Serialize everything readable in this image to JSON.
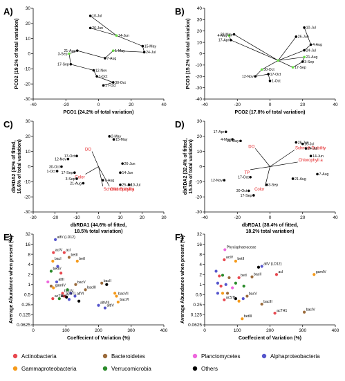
{
  "colors": {
    "black": "#000000",
    "green": "#66dd44",
    "red": "#e31a1c",
    "Actinobacteria": "#e8484f",
    "Bacteroidetes": "#9a6a3a",
    "Planctomycetes": "#ee66dd",
    "Alphaproteobacteria": "#5555cc",
    "Gammaproteobacteria": "#f59a1a",
    "Verrucomicrobia": "#2a8a2a",
    "Others": "#000000"
  },
  "legend": [
    {
      "name": "Actinobacteria",
      "color": "#e8484f"
    },
    {
      "name": "Bacteroidetes",
      "color": "#9a6a3a"
    },
    {
      "name": "Planctomycetes",
      "color": "#ee66dd"
    },
    {
      "name": "Alphaproteobacteria",
      "color": "#5555cc"
    },
    {
      "name": "Gammaproteobacteria",
      "color": "#f59a1a"
    },
    {
      "name": "Verrucomicrobia",
      "color": "#2a8a2a"
    },
    {
      "name": "Others",
      "color": "#000000"
    }
  ],
  "chart_data": [
    {
      "panel": "A)",
      "type": "scatter",
      "xlabel": "PCO1 (24.2% of total variation)",
      "ylabel": "PCO2 (19.2% of total variation)",
      "xlim": [
        -40,
        40
      ],
      "ylim": [
        -30,
        30
      ],
      "xticks": [
        -40,
        -20,
        0,
        20,
        40
      ],
      "yticks": [
        -30,
        -20,
        -10,
        0,
        10,
        20,
        30
      ],
      "points": [
        {
          "label": "10-Jul",
          "x": -5,
          "y": 25,
          "color": "black"
        },
        {
          "label": "26-Jun",
          "x": -5,
          "y": 17,
          "color": "black"
        },
        {
          "label": "14-Jun",
          "x": 11,
          "y": 12,
          "color": "green"
        },
        {
          "label": "15-May",
          "x": 27,
          "y": 5,
          "color": "black"
        },
        {
          "label": "24-Jul",
          "x": 28,
          "y": 1,
          "color": "black"
        },
        {
          "label": "1-May",
          "x": 9,
          "y": 2,
          "color": "green"
        },
        {
          "label": "21-Aug",
          "x": -13,
          "y": 2,
          "color": "black"
        },
        {
          "label": "3-Sep",
          "x": -18,
          "y": 0,
          "color": "green"
        },
        {
          "label": "7-Aug",
          "x": 4,
          "y": -3,
          "color": "black"
        },
        {
          "label": "17-Sep",
          "x": -17,
          "y": -7,
          "color": "black"
        },
        {
          "label": "12-Nov",
          "x": -3,
          "y": -11,
          "color": "black"
        },
        {
          "label": "1-Oct",
          "x": -1,
          "y": -15,
          "color": "black"
        },
        {
          "label": "30-Oct",
          "x": 9,
          "y": -19,
          "color": "black"
        },
        {
          "label": "17-Oct",
          "x": 3,
          "y": -21,
          "color": "black"
        }
      ],
      "path": [
        "10-Jul",
        "14-Jun",
        "26-Jun"
      ],
      "path2": [
        "14-Jun",
        "15-May",
        "24-Jul",
        "1-May",
        "7-Aug",
        "21-Aug",
        "3-Sep",
        "17-Sep",
        "12-Nov",
        "1-Oct",
        "30-Oct",
        "17-Oct"
      ]
    },
    {
      "panel": "B)",
      "type": "scatter",
      "xlabel": "PCO2 (17.8% of total variation)",
      "ylabel": "PCO3 (15.2% of total variation)",
      "xlim": [
        -40,
        40
      ],
      "ylim": [
        -40,
        40
      ],
      "xticks": [
        -40,
        -20,
        0,
        20,
        40
      ],
      "yticks": [
        -40,
        -30,
        -20,
        -10,
        0,
        10,
        20,
        30,
        40
      ],
      "points": [
        {
          "label": "10-Jul",
          "x": 21,
          "y": 23,
          "color": "black"
        },
        {
          "label": "4-May",
          "x": -25,
          "y": 16,
          "color": "green"
        },
        {
          "label": "28-May",
          "x": -22,
          "y": 17,
          "color": "black"
        },
        {
          "label": "17-Apr",
          "x": -24,
          "y": 12,
          "color": "black"
        },
        {
          "label": "26-Jun",
          "x": 16,
          "y": 15,
          "color": "black"
        },
        {
          "label": "4-Aug",
          "x": 25,
          "y": 8,
          "color": "black"
        },
        {
          "label": "24-Jul",
          "x": 21,
          "y": 3,
          "color": "black"
        },
        {
          "label": "21-Aug",
          "x": 21,
          "y": -3,
          "color": "green"
        },
        {
          "label": "3-Sep",
          "x": 20,
          "y": -7,
          "color": "black"
        },
        {
          "label": "17-Sep",
          "x": 14,
          "y": -12,
          "color": "green"
        },
        {
          "label": "30-Oct",
          "x": -5,
          "y": -14,
          "color": "green"
        },
        {
          "label": "17-Oct",
          "x": -1,
          "y": -18,
          "color": "black"
        },
        {
          "label": "12-Nov",
          "x": -9,
          "y": -20,
          "color": "black"
        },
        {
          "label": "1-Oct",
          "x": 0,
          "y": -24,
          "color": "black"
        },
        {
          "label": "center",
          "x": 5,
          "y": -6,
          "color": "green"
        }
      ],
      "path": [
        "10-Jul",
        "4-Aug",
        "24-Jul",
        "center",
        "28-May",
        "4-May",
        "17-Apr",
        "center",
        "26-Jun",
        "center",
        "21-Aug",
        "3-Sep",
        "17-Sep",
        "center",
        "30-Oct",
        "12-Nov",
        "17-Oct",
        "1-Oct"
      ]
    },
    {
      "panel": "C)",
      "type": "scatter",
      "xlabel": "dbRDA1 (44.6% of fitted, 18.5% total variation)",
      "ylabel": "dbRDA2 (40% of fitted, 16.6% of total variation)",
      "xlim": [
        -30,
        30
      ],
      "ylim": [
        -30,
        30
      ],
      "xticks": [
        -30,
        -20,
        -10,
        0,
        10,
        20,
        30
      ],
      "yticks": [
        -30,
        -20,
        -10,
        0,
        10,
        20,
        30
      ],
      "points": [
        {
          "label": "2-May",
          "x": 5,
          "y": 20,
          "color": "black"
        },
        {
          "label": "15-May",
          "x": 7,
          "y": 18,
          "color": "black"
        },
        {
          "label": "17-Oct",
          "x": -10,
          "y": 7,
          "color": "black"
        },
        {
          "label": "12-Nov",
          "x": -14,
          "y": 5,
          "color": "black"
        },
        {
          "label": "30-Oct",
          "x": -17,
          "y": 0,
          "color": "black"
        },
        {
          "label": "1-Oct",
          "x": -19,
          "y": -3,
          "color": "black"
        },
        {
          "label": "17-Sep",
          "x": -11,
          "y": -4,
          "color": "black"
        },
        {
          "label": "26-Jun",
          "x": 11,
          "y": 2,
          "color": "black"
        },
        {
          "label": "14-Jun",
          "x": 10,
          "y": -4,
          "color": "black"
        },
        {
          "label": "3-Sep",
          "x": -10,
          "y": -8,
          "color": "black"
        },
        {
          "label": "7-Aug",
          "x": 2,
          "y": -9,
          "color": "black"
        },
        {
          "label": "21-Aug",
          "x": -7,
          "y": -11,
          "color": "black"
        },
        {
          "label": "25-Jul",
          "x": 10,
          "y": -12,
          "color": "black"
        },
        {
          "label": "10-Jul",
          "x": 14,
          "y": -12,
          "color": "black"
        }
      ],
      "vectors": [
        {
          "label": "DO",
          "x": -3,
          "y": 10
        },
        {
          "label": "Color",
          "x": -6,
          "y": -5
        },
        {
          "label": "Schmidt Stability",
          "x": 2,
          "y": -13
        },
        {
          "label": "Chlorophyll a",
          "x": 5,
          "y": -13
        }
      ]
    },
    {
      "panel": "D)",
      "type": "scatter",
      "xlabel": "dbRDA1 (38.4% of fitted, 18.2% total variation)",
      "ylabel": "dbRDA2 (32.4% of fitted, 15.3% of total variation)",
      "xlim": [
        -40,
        40
      ],
      "ylim": [
        -30,
        30
      ],
      "xticks": [
        -40,
        -20,
        0,
        20,
        40
      ],
      "yticks": [
        -30,
        -20,
        -10,
        0,
        10,
        20,
        30
      ],
      "points": [
        {
          "label": "17-Apr",
          "x": -27,
          "y": 23,
          "color": "black"
        },
        {
          "label": "4-May",
          "x": -23,
          "y": 18,
          "color": "black"
        },
        {
          "label": "28-May",
          "x": -18,
          "y": 17,
          "color": "black"
        },
        {
          "label": "26-Jun",
          "x": 16,
          "y": 16,
          "color": "black"
        },
        {
          "label": "10-Jul",
          "x": 20,
          "y": 15,
          "color": "black"
        },
        {
          "label": "24-Jul",
          "x": 22,
          "y": 12,
          "color": "black"
        },
        {
          "label": "14-Jun",
          "x": 25,
          "y": 7,
          "color": "black"
        },
        {
          "label": "7-Aug",
          "x": 29,
          "y": -5,
          "color": "black"
        },
        {
          "label": "21-Aug",
          "x": 14,
          "y": -8,
          "color": "black"
        },
        {
          "label": "17-Oct",
          "x": -12,
          "y": -7,
          "color": "black"
        },
        {
          "label": "12-Nov",
          "x": -28,
          "y": -9,
          "color": "black"
        },
        {
          "label": "3-Sep",
          "x": -2,
          "y": -12,
          "color": "black"
        },
        {
          "label": "30-Oct",
          "x": -13,
          "y": -16,
          "color": "black"
        },
        {
          "label": "17-Sep",
          "x": -10,
          "y": -19,
          "color": "black"
        }
      ],
      "vectors": [
        {
          "label": "DO",
          "x": -9,
          "y": 12
        },
        {
          "label": "Schmidt Stability",
          "x": 15,
          "y": 11
        },
        {
          "label": "TP",
          "x": -12,
          "y": -2
        },
        {
          "label": "Chlorophyll a",
          "x": 17,
          "y": 3
        },
        {
          "label": "Color",
          "x": -3,
          "y": -13
        }
      ]
    },
    {
      "panel": "E)",
      "type": "scatter",
      "xlabel": "Coeffecient of Variation (%)",
      "ylabel": "Average Abundance when present (%)",
      "xlim": [
        0,
        400
      ],
      "ylim": [
        0.0625,
        32
      ],
      "yscale": "log2",
      "xticks": [
        0,
        100,
        200,
        300,
        400
      ],
      "yticks": [
        "32",
        "16",
        "8",
        "4",
        "2",
        "1",
        "0.5",
        "0.25",
        "0.125",
        "0.0625"
      ],
      "points": [
        {
          "label": "alfV (LD12)",
          "x": 68,
          "y": 22,
          "group": "Alphaproteobacteria"
        },
        {
          "label": "acIV",
          "x": 62,
          "y": 9,
          "group": "Actinobacteria"
        },
        {
          "label": "acI",
          "x": 95,
          "y": 9,
          "group": "Actinobacteria"
        },
        {
          "label": "betII",
          "x": 110,
          "y": 6.5,
          "group": "Bacteroidetes"
        },
        {
          "label": "bacI",
          "x": 60,
          "y": 5,
          "group": "Gammaproteobacteria"
        },
        {
          "label": "betI",
          "x": 135,
          "y": 5,
          "group": "Gammaproteobacteria"
        },
        {
          "label": "betIV",
          "x": 55,
          "y": 2.5,
          "group": "Verrucomicrobia"
        },
        {
          "label": "",
          "x": 75,
          "y": 3.5,
          "group": "Alphaproteobacteria"
        },
        {
          "label": "",
          "x": 85,
          "y": 2.2,
          "group": "Actinobacteria"
        },
        {
          "label": "altII",
          "x": 72,
          "y": 1.2,
          "group": "Alphaproteobacteria"
        },
        {
          "label": "",
          "x": 45,
          "y": 1.2,
          "group": "Planctomycetes"
        },
        {
          "label": "",
          "x": 55,
          "y": 0.9,
          "group": "Bacteroidetes"
        },
        {
          "label": "bacV",
          "x": 130,
          "y": 1.0,
          "group": "Bacteroidetes"
        },
        {
          "label": "gamIV",
          "x": 62,
          "y": 0.8,
          "group": "Gammaproteobacteria"
        },
        {
          "label": "bacIII",
          "x": 160,
          "y": 0.7,
          "group": "Bacteroidetes"
        },
        {
          "label": "bacIV",
          "x": 90,
          "y": 0.55,
          "group": "Actinobacteria"
        },
        {
          "label": "",
          "x": 105,
          "y": 0.7,
          "group": "Verrucomicrobia"
        },
        {
          "label": "",
          "x": 115,
          "y": 0.55,
          "group": "Alphaproteobacteria"
        },
        {
          "label": "acTH1",
          "x": 60,
          "y": 0.38,
          "group": "Actinobacteria"
        },
        {
          "label": "acSTL",
          "x": 95,
          "y": 0.45,
          "group": "Actinobacteria"
        },
        {
          "label": "betV",
          "x": 80,
          "y": 0.38,
          "group": "Verrucomicrobia"
        },
        {
          "label": "",
          "x": 102,
          "y": 0.42,
          "group": "Others"
        },
        {
          "label": "alfVI",
          "x": 128,
          "y": 0.45,
          "group": "Alphaproteobacteria"
        },
        {
          "label": "",
          "x": 140,
          "y": 0.32,
          "group": "Others"
        },
        {
          "label": "",
          "x": 110,
          "y": 0.36,
          "group": "Alphaproteobacteria"
        },
        {
          "label": "bacII",
          "x": 210,
          "y": 1.1,
          "group": "Bacteroidetes"
        },
        {
          "label": "",
          "x": 225,
          "y": 1.0,
          "group": "Others"
        },
        {
          "label": "",
          "x": 250,
          "y": 0.55,
          "group": "Gammaproteobacteria"
        },
        {
          "label": "bacVII",
          "x": 255,
          "y": 0.45,
          "group": "Gammaproteobacteria"
        },
        {
          "label": "bacVI",
          "x": 260,
          "y": 0.3,
          "group": "Gammaproteobacteria"
        },
        {
          "label": "altVIII",
          "x": 200,
          "y": 0.24,
          "group": "Alphaproteobacteria"
        },
        {
          "label": "altIV",
          "x": 220,
          "y": 0.2,
          "group": "Alphaproteobacteria"
        }
      ]
    },
    {
      "panel": "F)",
      "type": "scatter",
      "xlabel": "Coeffecient of Variation (%)",
      "ylabel": "Average Abundance when present (%)",
      "xlim": [
        0,
        400
      ],
      "ylim": [
        0.0625,
        32
      ],
      "yscale": "log2",
      "xticks": [
        0,
        100,
        200,
        300,
        400
      ],
      "yticks": [
        "32",
        "16",
        "8",
        "4",
        "2",
        "1",
        "0.5",
        "0.25",
        "0.125",
        "0.0625"
      ],
      "points": [
        {
          "label": "Phycisphaeraceae",
          "x": 62,
          "y": 11,
          "group": "Planctomycetes"
        },
        {
          "label": "acIV",
          "x": 60,
          "y": 5.5,
          "group": "Actinobacteria"
        },
        {
          "label": "betII",
          "x": 95,
          "y": 5,
          "group": "Gammaproteobacteria"
        },
        {
          "label": "alfV (LD12)",
          "x": 175,
          "y": 3.5,
          "group": "Alphaproteobacteria"
        },
        {
          "label": "",
          "x": 165,
          "y": 3.3,
          "group": "Others"
        },
        {
          "label": "gamIV",
          "x": 335,
          "y": 2,
          "group": "Gammaproteobacteria"
        },
        {
          "label": "acI",
          "x": 220,
          "y": 2,
          "group": "Actinobacteria"
        },
        {
          "label": "",
          "x": 35,
          "y": 2.5,
          "group": "Alphaproteobacteria"
        },
        {
          "label": "",
          "x": 45,
          "y": 1.8,
          "group": "Actinobacteria"
        },
        {
          "label": "",
          "x": 55,
          "y": 1.9,
          "group": "Verrucomicrobia"
        },
        {
          "label": "",
          "x": 75,
          "y": 1.6,
          "group": "Bacteroidetes"
        },
        {
          "label": "betI",
          "x": 105,
          "y": 1.6,
          "group": "Actinobacteria"
        },
        {
          "label": "bacII",
          "x": 145,
          "y": 1.7,
          "group": "Bacteroidetes"
        },
        {
          "label": "",
          "x": 40,
          "y": 1.1,
          "group": "Alphaproteobacteria"
        },
        {
          "label": "",
          "x": 50,
          "y": 0.9,
          "group": "Actinobacteria"
        },
        {
          "label": "",
          "x": 65,
          "y": 1.0,
          "group": "Alphaproteobacteria"
        },
        {
          "label": "",
          "x": 85,
          "y": 0.8,
          "group": "Planctomycetes"
        },
        {
          "label": "",
          "x": 95,
          "y": 1.1,
          "group": "Verrucomicrobia"
        },
        {
          "label": "",
          "x": 120,
          "y": 0.9,
          "group": "Verrucomicrobia"
        },
        {
          "label": "",
          "x": 40,
          "y": 0.55,
          "group": "Alphaproteobacteria"
        },
        {
          "label": "",
          "x": 55,
          "y": 0.55,
          "group": "Gammaproteobacteria"
        },
        {
          "label": "",
          "x": 70,
          "y": 0.55,
          "group": "Bacteroidetes"
        },
        {
          "label": "bacV",
          "x": 130,
          "y": 0.45,
          "group": "Bacteroidetes"
        },
        {
          "label": "",
          "x": 118,
          "y": 0.38,
          "group": "Alphaproteobacteria"
        },
        {
          "label": "",
          "x": 105,
          "y": 0.32,
          "group": "Gammaproteobacteria"
        },
        {
          "label": "",
          "x": 95,
          "y": 0.38,
          "group": "Others"
        },
        {
          "label": "acSTL",
          "x": 60,
          "y": 0.35,
          "group": "Actinobacteria"
        },
        {
          "label": "bacIII",
          "x": 175,
          "y": 0.26,
          "group": "Bacteroidetes"
        },
        {
          "label": "betIII",
          "x": 115,
          "y": 0.095,
          "group": "Gammaproteobacteria"
        },
        {
          "label": "acTH1",
          "x": 215,
          "y": 0.14,
          "group": "Actinobacteria"
        },
        {
          "label": "bacIV",
          "x": 305,
          "y": 0.15,
          "group": "Bacteroidetes"
        }
      ]
    }
  ]
}
